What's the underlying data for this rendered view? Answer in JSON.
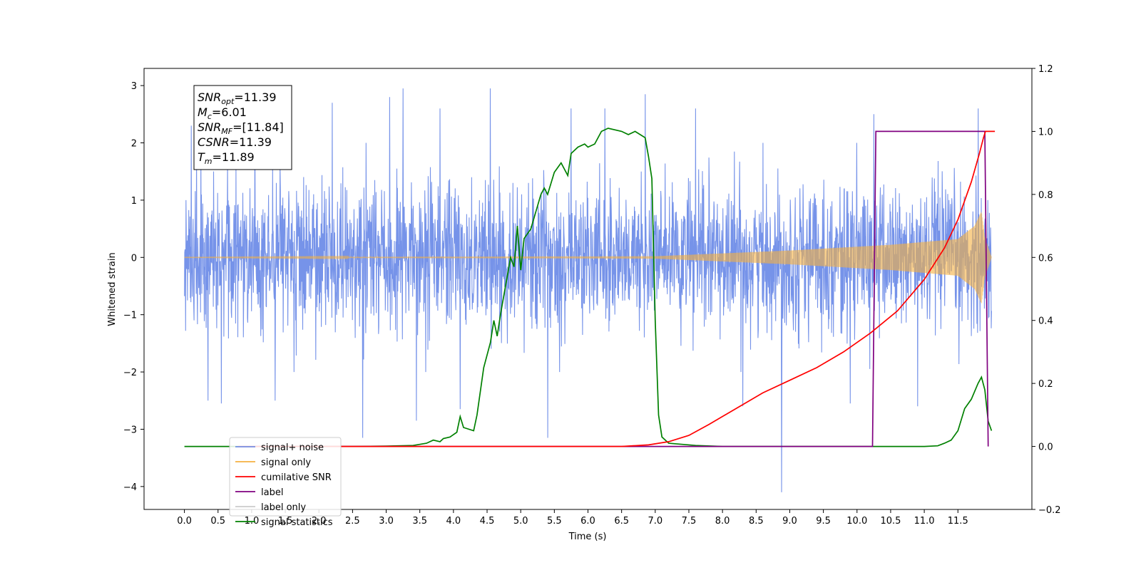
{
  "chart_data": {
    "type": "line",
    "xlabel": "Time (s)",
    "ylabel": "Whitened strain",
    "ylabel_right": "",
    "xlim": [
      -0.6,
      12.6
    ],
    "ylim": [
      -4.4,
      3.3
    ],
    "ylim_right": [
      -0.2,
      1.2
    ],
    "x_ticks": [
      0.0,
      0.5,
      1.0,
      1.5,
      2.0,
      2.5,
      3.0,
      3.5,
      4.0,
      4.5,
      5.0,
      5.5,
      6.0,
      6.5,
      7.0,
      7.5,
      8.0,
      8.5,
      9.0,
      9.5,
      10.0,
      10.5,
      11.0,
      11.5
    ],
    "x_tick_labels": [
      "0.0",
      "0.5",
      "1.0",
      "1.5",
      "2.0",
      "2.5",
      "3.0",
      "3.5",
      "4.0",
      "4.5",
      "5.0",
      "5.5",
      "6.0",
      "6.5",
      "7.0",
      "7.5",
      "8.0",
      "8.5",
      "9.0",
      "9.5",
      "10.0",
      "10.5",
      "11.0",
      "11.5"
    ],
    "y_ticks": [
      -4,
      -3,
      -2,
      -1,
      0,
      1,
      2,
      3
    ],
    "y_tick_labels": [
      "−4",
      "−3",
      "−2",
      "−1",
      "0",
      "1",
      "2",
      "3"
    ],
    "y_ticks_right": [
      -0.2,
      0.0,
      0.2,
      0.4,
      0.6,
      0.8,
      1.0,
      1.2
    ],
    "y_tick_labels_right": [
      "−0.2",
      "0.0",
      "0.2",
      "0.4",
      "0.6",
      "0.8",
      "1.0",
      "1.2"
    ],
    "grid": false,
    "legend_position": "lower-left",
    "annotation": {
      "lines": [
        {
          "base": "SNR",
          "sub": "opt",
          "rest": "=11.39"
        },
        {
          "base": "M",
          "sub": "c",
          "rest": "=6.01"
        },
        {
          "base": "SNR",
          "sub": "MF",
          "rest": "=[11.84]"
        },
        {
          "base": "CSNR",
          "sub": "",
          "rest": "=11.39"
        },
        {
          "base": "T",
          "sub": "m",
          "rest": "=11.89"
        }
      ]
    },
    "series": [
      {
        "name": "signal+ noise",
        "color": "#4169e1",
        "axis": "left",
        "x_range": [
          0.0,
          12.0
        ],
        "envelope_typical": 1.6,
        "spikes": [
          {
            "x": 0.1,
            "y": 2.3
          },
          {
            "x": 0.35,
            "y": -2.5
          },
          {
            "x": 0.55,
            "y": -2.55
          },
          {
            "x": 1.05,
            "y": 2.5
          },
          {
            "x": 1.35,
            "y": -2.5
          },
          {
            "x": 2.2,
            "y": 2.7
          },
          {
            "x": 2.65,
            "y": -3.15
          },
          {
            "x": 3.05,
            "y": 2.8
          },
          {
            "x": 3.25,
            "y": 2.95
          },
          {
            "x": 3.45,
            "y": -2.85
          },
          {
            "x": 3.8,
            "y": 2.6
          },
          {
            "x": 4.1,
            "y": -2.65
          },
          {
            "x": 4.55,
            "y": 2.95
          },
          {
            "x": 5.4,
            "y": -3.15
          },
          {
            "x": 5.75,
            "y": 2.6
          },
          {
            "x": 6.25,
            "y": 2.6
          },
          {
            "x": 6.85,
            "y": 2.85
          },
          {
            "x": 7.6,
            "y": 2.6
          },
          {
            "x": 8.3,
            "y": -2.6
          },
          {
            "x": 8.88,
            "y": -4.1
          },
          {
            "x": 9.9,
            "y": -2.55
          },
          {
            "x": 10.25,
            "y": 2.5
          },
          {
            "x": 10.9,
            "y": -2.6
          },
          {
            "x": 11.8,
            "y": 2.6
          }
        ]
      },
      {
        "name": "signal only",
        "color": "#f5b041",
        "axis": "left",
        "x_range": [
          0.0,
          12.0
        ],
        "chirp_amplitude": [
          [
            0.0,
            0.002
          ],
          [
            7.0,
            0.02
          ],
          [
            9.0,
            0.12
          ],
          [
            10.5,
            0.22
          ],
          [
            11.5,
            0.32
          ],
          [
            11.75,
            0.55
          ],
          [
            11.85,
            0.8
          ],
          [
            11.9,
            0.35
          ],
          [
            12.0,
            0.0
          ]
        ]
      },
      {
        "name": "cumilative SNR",
        "color": "#ff0000",
        "axis": "right",
        "points": [
          [
            0.8,
            0.0
          ],
          [
            6.5,
            0.0
          ],
          [
            6.9,
            0.005
          ],
          [
            7.2,
            0.015
          ],
          [
            7.5,
            0.035
          ],
          [
            7.8,
            0.07
          ],
          [
            8.2,
            0.12
          ],
          [
            8.6,
            0.17
          ],
          [
            9.0,
            0.21
          ],
          [
            9.4,
            0.25
          ],
          [
            9.8,
            0.3
          ],
          [
            10.2,
            0.36
          ],
          [
            10.6,
            0.43
          ],
          [
            11.0,
            0.53
          ],
          [
            11.3,
            0.63
          ],
          [
            11.5,
            0.72
          ],
          [
            11.7,
            0.84
          ],
          [
            11.82,
            0.93
          ],
          [
            11.88,
            0.98
          ],
          [
            11.91,
            1.0
          ],
          [
            12.05,
            1.0
          ]
        ]
      },
      {
        "name": "label",
        "color": "#800080",
        "axis": "right",
        "points": [
          [
            0.8,
            0.0
          ],
          [
            10.23,
            0.0
          ],
          [
            10.28,
            1.0
          ],
          [
            11.9,
            1.0
          ],
          [
            11.95,
            0.0
          ]
        ]
      },
      {
        "name": "label only",
        "color": "#cccccc",
        "axis": "right",
        "points": []
      },
      {
        "name": "signal statistics",
        "color": "#008000",
        "axis": "right",
        "points": [
          [
            0.0,
            0.0
          ],
          [
            2.5,
            0.0
          ],
          [
            3.0,
            0.001
          ],
          [
            3.4,
            0.003
          ],
          [
            3.6,
            0.01
          ],
          [
            3.7,
            0.02
          ],
          [
            3.8,
            0.015
          ],
          [
            3.85,
            0.025
          ],
          [
            3.95,
            0.03
          ],
          [
            4.05,
            0.045
          ],
          [
            4.1,
            0.095
          ],
          [
            4.15,
            0.06
          ],
          [
            4.3,
            0.05
          ],
          [
            4.35,
            0.1
          ],
          [
            4.45,
            0.25
          ],
          [
            4.55,
            0.33
          ],
          [
            4.6,
            0.4
          ],
          [
            4.65,
            0.35
          ],
          [
            4.7,
            0.42
          ],
          [
            4.8,
            0.54
          ],
          [
            4.85,
            0.6
          ],
          [
            4.9,
            0.57
          ],
          [
            4.95,
            0.7
          ],
          [
            5.0,
            0.56
          ],
          [
            5.05,
            0.66
          ],
          [
            5.15,
            0.69
          ],
          [
            5.3,
            0.8
          ],
          [
            5.35,
            0.82
          ],
          [
            5.4,
            0.8
          ],
          [
            5.5,
            0.87
          ],
          [
            5.6,
            0.9
          ],
          [
            5.7,
            0.86
          ],
          [
            5.75,
            0.93
          ],
          [
            5.85,
            0.95
          ],
          [
            5.95,
            0.96
          ],
          [
            6.0,
            0.95
          ],
          [
            6.1,
            0.96
          ],
          [
            6.2,
            1.0
          ],
          [
            6.3,
            1.01
          ],
          [
            6.5,
            1.0
          ],
          [
            6.6,
            0.99
          ],
          [
            6.7,
            1.0
          ],
          [
            6.85,
            0.98
          ],
          [
            6.9,
            0.92
          ],
          [
            6.95,
            0.85
          ],
          [
            7.0,
            0.4
          ],
          [
            7.05,
            0.1
          ],
          [
            7.1,
            0.03
          ],
          [
            7.2,
            0.01
          ],
          [
            7.6,
            0.003
          ],
          [
            8.0,
            0.0
          ],
          [
            11.0,
            0.0
          ],
          [
            11.2,
            0.002
          ],
          [
            11.3,
            0.01
          ],
          [
            11.4,
            0.02
          ],
          [
            11.5,
            0.05
          ],
          [
            11.6,
            0.12
          ],
          [
            11.7,
            0.15
          ],
          [
            11.8,
            0.2
          ],
          [
            11.85,
            0.22
          ],
          [
            11.9,
            0.18
          ],
          [
            11.95,
            0.08
          ],
          [
            12.0,
            0.05
          ]
        ]
      }
    ]
  }
}
